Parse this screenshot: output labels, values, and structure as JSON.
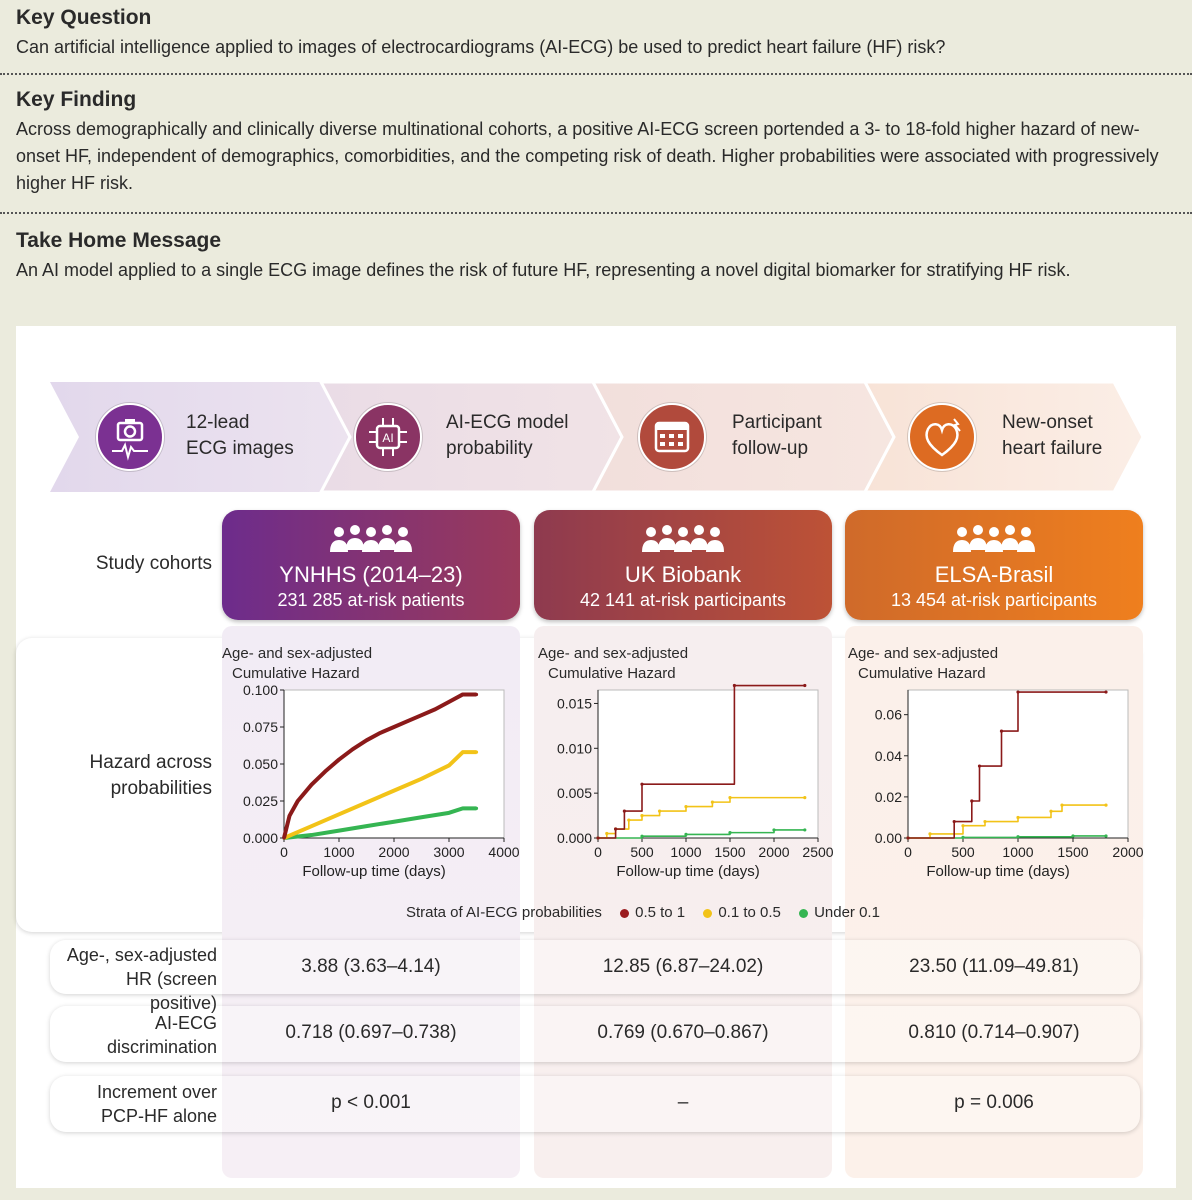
{
  "sections": [
    {
      "heading": "Key Question",
      "body": "Can artificial intelligence applied to images of electrocardiograms (AI-ECG) be used to predict heart failure (HF) risk?"
    },
    {
      "heading": "Key Finding",
      "body": "Across demographically and clinically diverse multinational cohorts, a positive AI-ECG screen portended a 3- to 18-fold higher hazard of new-onset HF, independent of demographics, comorbidities, and the competing risk of death. Higher probabilities were associated with progressively higher HF risk."
    },
    {
      "heading": "Take Home Message",
      "body": "An AI model applied to a single ECG image defines the risk of future HF, representing a novel digital biomarker for stratifying HF risk."
    }
  ],
  "workflow": [
    {
      "line1": "12-lead",
      "line2": "ECG images",
      "icon": "camera-ecg-icon",
      "color": "#7b3192"
    },
    {
      "line1": "AI-ECG model",
      "line2": "probability",
      "icon": "ai-chip-icon",
      "color": "#8a3464"
    },
    {
      "line1": "Participant",
      "line2": "follow-up",
      "icon": "calendar-icon",
      "color": "#b14a3c"
    },
    {
      "line1": "New-onset",
      "line2": "heart failure",
      "icon": "heart-icon",
      "color": "#dd6b22"
    }
  ],
  "row_labels": {
    "cohorts": "Study cohorts",
    "hazard": [
      "Hazard across",
      "probabilities"
    ],
    "hr": [
      "Age-, sex-adjusted",
      "HR (screen positive)"
    ],
    "disc": [
      "AI-ECG",
      "discrimination"
    ],
    "incr": [
      "Increment over",
      "PCP-HF alone"
    ]
  },
  "cohorts": [
    {
      "name": "YNHHS (2014–23)",
      "subtitle": "231 285 at-risk patients",
      "color1": "#6d2c8c",
      "color2": "#9a3a5a",
      "hr": "3.88 (3.63–4.14)",
      "disc": "0.718 (0.697–0.738)",
      "incr": "p < 0.001"
    },
    {
      "name": "UK Biobank",
      "subtitle": "42 141 at-risk participants",
      "color1": "#8e3a4f",
      "color2": "#bd5236",
      "hr": "12.85 (6.87–24.02)",
      "disc": "0.769 (0.670–0.867)",
      "incr": "–"
    },
    {
      "name": "ELSA-Brasil",
      "subtitle": "13 454 at-risk participants",
      "color1": "#cf6a2a",
      "color2": "#ef7f1e",
      "hr": "23.50 (11.09–49.81)",
      "disc": "0.810 (0.714–0.907)",
      "incr": "p = 0.006"
    }
  ],
  "chart_title": [
    "Age- and sex-adjusted",
    "Cumulative Hazard"
  ],
  "legend": {
    "title": "Strata of AI-ECG probabilities",
    "items": [
      {
        "label": "0.5 to 1",
        "color": "#9b1c1f"
      },
      {
        "label": "0.1 to 0.5",
        "color": "#f2c318"
      },
      {
        "label": "Under 0.1",
        "color": "#35b552"
      }
    ]
  },
  "chart_data": [
    {
      "type": "line",
      "title": "Age- and sex-adjusted Cumulative Hazard",
      "xlabel": "Follow-up time (days)",
      "ylabel": "",
      "xlim": [
        0,
        4000
      ],
      "ylim": [
        0,
        0.1
      ],
      "xticks": [
        0,
        1000,
        2000,
        3000,
        4000
      ],
      "xtick_labels": [
        "0",
        "1000",
        "2000",
        "3000",
        "4000"
      ],
      "yticks": [
        0,
        0.025,
        0.05,
        0.075,
        0.1
      ],
      "ytick_labels": [
        "0.000",
        "0.025",
        "0.050",
        "0.075",
        "0.100"
      ],
      "series": [
        {
          "name": "0.5 to 1",
          "color": "#8b1a1a",
          "x": [
            0,
            100,
            250,
            500,
            750,
            1000,
            1250,
            1500,
            1750,
            2000,
            2250,
            2500,
            2750,
            3000,
            3250,
            3500
          ],
          "y": [
            0,
            0.015,
            0.025,
            0.036,
            0.045,
            0.053,
            0.06,
            0.066,
            0.071,
            0.075,
            0.079,
            0.083,
            0.087,
            0.092,
            0.097,
            0.097
          ]
        },
        {
          "name": "0.1 to 0.5",
          "color": "#f2c318",
          "x": [
            0,
            500,
            1000,
            1500,
            2000,
            2500,
            3000,
            3250,
            3500
          ],
          "y": [
            0,
            0.008,
            0.016,
            0.024,
            0.032,
            0.04,
            0.049,
            0.058,
            0.058
          ]
        },
        {
          "name": "Under 0.1",
          "color": "#35b552",
          "x": [
            0,
            500,
            1000,
            1500,
            2000,
            2500,
            3000,
            3250,
            3500
          ],
          "y": [
            0,
            0.002,
            0.005,
            0.008,
            0.011,
            0.014,
            0.017,
            0.02,
            0.02
          ]
        }
      ]
    },
    {
      "type": "line",
      "title": "Age- and sex-adjusted Cumulative Hazard",
      "xlabel": "Follow-up time (days)",
      "ylabel": "",
      "xlim": [
        0,
        2500
      ],
      "ylim": [
        0,
        0.0165
      ],
      "xticks": [
        0,
        500,
        1000,
        1500,
        2000,
        2500
      ],
      "xtick_labels": [
        "0",
        "500",
        "1000",
        "1500",
        "2000",
        "2500"
      ],
      "yticks": [
        0,
        0.005,
        0.01,
        0.015
      ],
      "ytick_labels": [
        "0.000",
        "0.005",
        "0.010",
        "0.015"
      ],
      "series": [
        {
          "name": "0.5 to 1",
          "color": "#8b1a1a",
          "step": true,
          "x": [
            0,
            200,
            300,
            500,
            1550,
            2350
          ],
          "y": [
            0,
            0.001,
            0.003,
            0.006,
            0.017,
            0.017
          ]
        },
        {
          "name": "0.1 to 0.5",
          "color": "#f2c318",
          "step": true,
          "x": [
            0,
            100,
            200,
            350,
            500,
            700,
            1000,
            1300,
            1500,
            2350
          ],
          "y": [
            0,
            0.0005,
            0.001,
            0.002,
            0.0025,
            0.003,
            0.0035,
            0.004,
            0.0045,
            0.0045
          ]
        },
        {
          "name": "Under 0.1",
          "color": "#35b552",
          "step": true,
          "x": [
            0,
            500,
            1000,
            1500,
            2000,
            2350
          ],
          "y": [
            0,
            0.0002,
            0.0004,
            0.0006,
            0.0009,
            0.0009
          ]
        }
      ]
    },
    {
      "type": "line",
      "title": "Age- and sex-adjusted Cumulative Hazard",
      "xlabel": "Follow-up time (days)",
      "ylabel": "",
      "xlim": [
        0,
        2000
      ],
      "ylim": [
        0,
        0.072
      ],
      "xticks": [
        0,
        500,
        1000,
        1500,
        2000
      ],
      "xtick_labels": [
        "0",
        "500",
        "1000",
        "1500",
        "2000"
      ],
      "yticks": [
        0,
        0.02,
        0.04,
        0.06
      ],
      "ytick_labels": [
        "0.00",
        "0.02",
        "0.04",
        "0.06"
      ],
      "series": [
        {
          "name": "0.5 to 1",
          "color": "#8b1a1a",
          "step": true,
          "x": [
            0,
            420,
            580,
            650,
            850,
            1000,
            1800
          ],
          "y": [
            0,
            0.008,
            0.018,
            0.035,
            0.052,
            0.071,
            0.071
          ]
        },
        {
          "name": "0.1 to 0.5",
          "color": "#f2c318",
          "step": true,
          "x": [
            0,
            200,
            500,
            700,
            1000,
            1300,
            1400,
            1800
          ],
          "y": [
            0,
            0.002,
            0.006,
            0.008,
            0.01,
            0.013,
            0.016,
            0.016
          ]
        },
        {
          "name": "Under 0.1",
          "color": "#35b552",
          "step": true,
          "x": [
            0,
            500,
            1000,
            1500,
            1800
          ],
          "y": [
            0,
            0.0003,
            0.0006,
            0.001,
            0.001
          ]
        }
      ]
    }
  ]
}
